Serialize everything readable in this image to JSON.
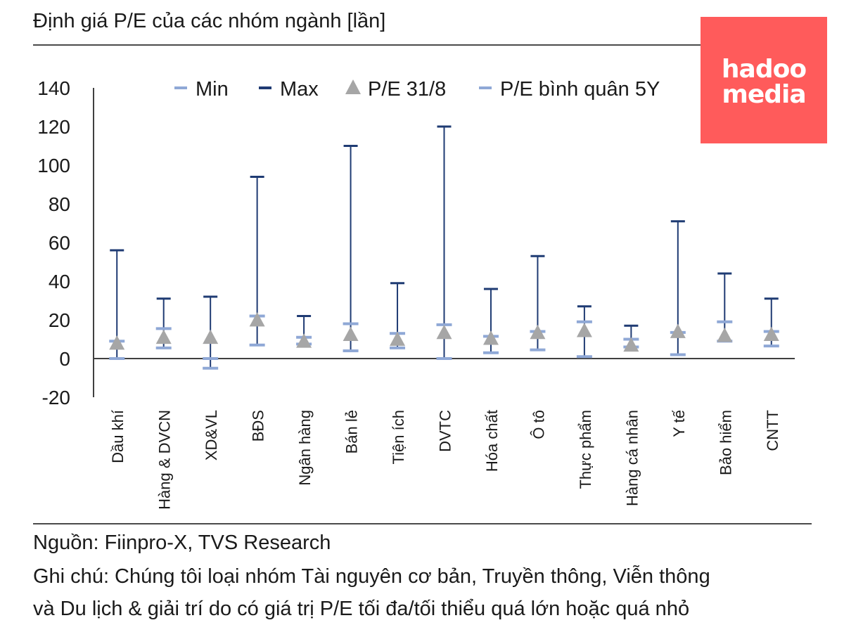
{
  "header": {
    "title": "Định giá P/E của các nhóm ngành [lần]"
  },
  "logo": {
    "line1": "hadoo",
    "line2": "media"
  },
  "colors": {
    "min": "#8fa8d6",
    "max": "#1f3b73",
    "current": "#a6a6a6",
    "avg": "#8fa8d6",
    "axis": "#404040"
  },
  "chart_data": {
    "type": "scatter",
    "title": "Định giá P/E của các nhóm ngành [lần]",
    "ylim": [
      -20,
      140
    ],
    "yticks": [
      "140",
      "120",
      "100",
      "80",
      "60",
      "40",
      "20",
      "0",
      "-20"
    ],
    "legend_position": "top",
    "legend": [
      "Min",
      "Max",
      "P/E 31/8",
      "P/E bình quân 5Y"
    ],
    "categories": [
      "Dầu khí",
      "Hàng & DVCN",
      "XD&VL",
      "BĐS",
      "Ngân hàng",
      "Bán lẻ",
      "Tiện ích",
      "DVTC",
      "Hóa chất",
      "Ô tô",
      "Thực phẩm",
      "Hàng cá nhân",
      "Y tế",
      "Bảo hiểm",
      "CNTT"
    ],
    "series": [
      {
        "name": "Min",
        "values": [
          0,
          5.5,
          -5,
          7,
          7.5,
          4,
          5.5,
          0,
          3,
          4.5,
          1,
          6,
          2,
          9,
          6.5
        ]
      },
      {
        "name": "Max",
        "values": [
          56,
          31,
          32,
          94,
          22,
          110,
          39,
          120,
          36,
          53,
          27,
          17,
          71,
          44,
          31
        ]
      },
      {
        "name": "P/E 31/8",
        "values": [
          8,
          11,
          11,
          20,
          9,
          12.5,
          10,
          13.5,
          10.5,
          13.5,
          14.5,
          7,
          14,
          12,
          12.5
        ]
      },
      {
        "name": "P/E bình quân 5Y",
        "values": [
          9,
          15.5,
          0,
          22,
          11,
          18,
          13,
          17.5,
          11.5,
          14,
          19,
          10,
          13.5,
          19,
          14
        ]
      }
    ]
  },
  "footer": {
    "source": "Nguồn: Fiinpro-X, TVS Research",
    "note_line1": "Ghi chú: Chúng tôi loại nhóm Tài nguyên cơ bản, Truyền thông, Viễn thông",
    "note_line2": "và Du lịch & giải trí do có giá trị P/E tối đa/tối thiểu quá lớn hoặc quá nhỏ"
  }
}
